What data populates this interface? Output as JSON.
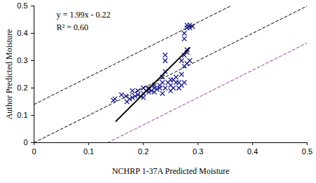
{
  "chart_data": {
    "type": "scatter",
    "x_label": "NCHRP 1-37A Predicted Moisture",
    "y_label": "Author Predicted Moisture",
    "annotations": [
      "y = 1.99x - 0.22",
      "R² = 0.60"
    ],
    "xlim": [
      0,
      0.5
    ],
    "ylim": [
      0,
      0.5
    ],
    "xticks": [
      0,
      0.1,
      0.2,
      0.3,
      0.4,
      0.5
    ],
    "yticks": [
      0,
      0.1,
      0.2,
      0.3,
      0.4,
      0.5
    ],
    "grid": false,
    "series": [
      {
        "type": "scatter",
        "marker": "x",
        "color": "#1c1c8c",
        "x": [
          0.145,
          0.148,
          0.16,
          0.168,
          0.17,
          0.175,
          0.18,
          0.185,
          0.19,
          0.195,
          0.2,
          0.2,
          0.205,
          0.21,
          0.21,
          0.215,
          0.22,
          0.22,
          0.225,
          0.23,
          0.23,
          0.235,
          0.235,
          0.24,
          0.24,
          0.24,
          0.235,
          0.24,
          0.245,
          0.25,
          0.25,
          0.255,
          0.255,
          0.26,
          0.26,
          0.265,
          0.265,
          0.27,
          0.27,
          0.27,
          0.275,
          0.275,
          0.275,
          0.28,
          0.28,
          0.275,
          0.275,
          0.28,
          0.28,
          0.285,
          0.29,
          0.285,
          0.285,
          0.28,
          0.18,
          0.19,
          0.2,
          0.21,
          0.22,
          0.25
        ],
        "values": [
          0.155,
          0.16,
          0.175,
          0.17,
          0.15,
          0.16,
          0.165,
          0.17,
          0.175,
          0.17,
          0.18,
          0.165,
          0.19,
          0.185,
          0.2,
          0.19,
          0.185,
          0.2,
          0.195,
          0.21,
          0.2,
          0.22,
          0.24,
          0.26,
          0.3,
          0.32,
          0.18,
          0.2,
          0.22,
          0.19,
          0.21,
          0.23,
          0.2,
          0.22,
          0.24,
          0.2,
          0.22,
          0.21,
          0.25,
          0.3,
          0.22,
          0.28,
          0.32,
          0.34,
          0.33,
          0.38,
          0.4,
          0.42,
          0.43,
          0.42,
          0.425,
          0.43,
          0.3,
          0.29,
          0.19,
          0.19,
          0.2,
          0.195,
          0.21,
          0.23
        ]
      },
      {
        "type": "line",
        "line_style": "solid",
        "color": "#000000",
        "x": [
          0.15,
          0.285
        ],
        "values": [
          0.0785,
          0.3472
        ]
      },
      {
        "type": "line",
        "line_style": "dashed",
        "color": "#000000",
        "x": [
          0,
          0.36
        ],
        "values": [
          0.14,
          0.5
        ]
      },
      {
        "type": "line",
        "line_style": "dashed",
        "color": "#000000",
        "x": [
          0,
          0.5
        ],
        "values": [
          0,
          0.5
        ]
      },
      {
        "type": "line",
        "line_style": "dashed",
        "color": "#993399",
        "x": [
          0.135,
          0.5
        ],
        "values": [
          0,
          0.365
        ]
      }
    ]
  }
}
